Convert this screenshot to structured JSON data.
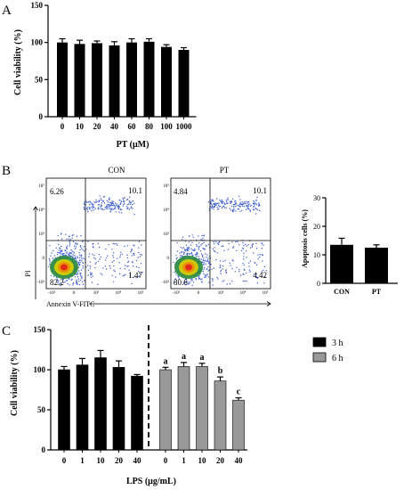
{
  "panel_letters": [
    "A",
    "B",
    "C"
  ],
  "chart_data": [
    {
      "id": "A",
      "type": "bar",
      "categories": [
        "0",
        "10",
        "20",
        "40",
        "60",
        "80",
        "100",
        "1000"
      ],
      "values": [
        100,
        98,
        99,
        96,
        100,
        101,
        94,
        90
      ],
      "errors": [
        5,
        5,
        3,
        5,
        5,
        4,
        3,
        3
      ],
      "xlabel": "PT (μM)",
      "ylabel": "Cell viability (%)",
      "ylim": [
        0,
        150
      ],
      "yticks": [
        "0",
        "50",
        "100",
        "150"
      ],
      "bar_color": "#000000"
    },
    {
      "id": "B-flow",
      "type": "scatter",
      "plots": [
        {
          "title": "CON",
          "quadrants": {
            "upper_left": "6.26",
            "upper_right": "10.1",
            "lower_left": "82.2",
            "lower_right": "1.47"
          }
        },
        {
          "title": "PT",
          "quadrants": {
            "upper_left": "4.84",
            "upper_right": "10.1",
            "lower_left": "80.6",
            "lower_right": "4.42"
          }
        }
      ],
      "xlabel": "Annexin V-FITC",
      "ylabel": "PI",
      "y_tick_labels": [
        "10⁵",
        "10⁴",
        "10³",
        "0",
        "-10³"
      ],
      "x_tick_labels": [
        "-10³",
        "0",
        "10³",
        "10⁴",
        "10⁵"
      ]
    },
    {
      "id": "B-bar",
      "type": "bar",
      "categories": [
        "CON",
        "PT"
      ],
      "values": [
        13.5,
        12.5
      ],
      "errors": [
        2.3,
        1.0
      ],
      "ylabel": "Apoptosis cells (%)",
      "ylim": [
        0,
        30
      ],
      "yticks": [
        "0",
        "10",
        "20",
        "30"
      ],
      "bar_color": "#000000"
    },
    {
      "id": "C",
      "type": "bar",
      "xlabel": "LPS (μg/mL)",
      "ylabel": "Cell viability (%)",
      "ylim": [
        0,
        150
      ],
      "yticks": [
        "0",
        "50",
        "100",
        "150"
      ],
      "categories": [
        "0",
        "1",
        "10",
        "20",
        "40"
      ],
      "series": [
        {
          "name": "3 h",
          "color": "#000000",
          "values": [
            100,
            106,
            115,
            103,
            92
          ],
          "errors": [
            4,
            8,
            9,
            8,
            2
          ],
          "letters": []
        },
        {
          "name": "6 h",
          "color": "#999999",
          "values": [
            100,
            104,
            104,
            86,
            62
          ],
          "errors": [
            3,
            5,
            4,
            5,
            3
          ],
          "letters": [
            "a",
            "a",
            "a",
            "b",
            "c"
          ]
        }
      ],
      "legend": "top-right"
    }
  ]
}
